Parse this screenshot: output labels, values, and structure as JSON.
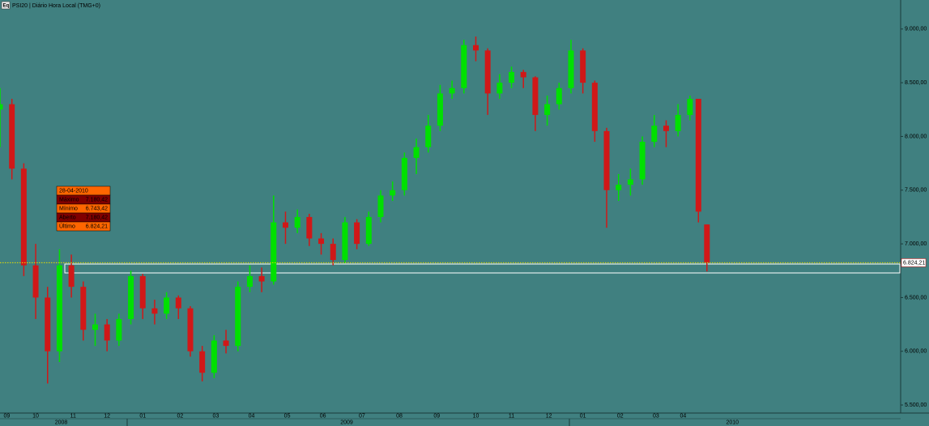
{
  "chart_data": {
    "type": "candlestick",
    "icon_label": "Eq",
    "title": "PSI20 | Diário Hora Local (TMG+0)",
    "x": [
      0,
      7,
      14,
      21,
      28,
      35,
      42,
      49,
      56,
      63,
      70,
      77,
      84,
      91,
      98,
      105,
      112,
      119,
      126,
      133,
      140,
      147,
      154,
      161,
      168,
      175,
      182,
      189,
      196,
      203,
      210,
      217,
      224,
      231,
      238,
      245,
      252,
      259,
      266,
      273,
      280,
      287,
      294,
      301,
      308,
      315,
      322,
      329,
      336,
      343,
      350,
      357,
      364,
      371,
      378,
      385,
      392,
      399,
      406,
      411,
      416
    ],
    "open": [
      8250,
      8300,
      7700,
      6800,
      6500,
      6000,
      6800,
      6600,
      6200,
      6250,
      6100,
      6300,
      6700,
      6400,
      6350,
      6500,
      6400,
      6000,
      5800,
      6100,
      6050,
      6600,
      6700,
      6650,
      7200,
      7150,
      7250,
      7050,
      7000,
      6850,
      7200,
      7000,
      7250,
      7450,
      7500,
      7800,
      7900,
      8100,
      8400,
      8450,
      8850,
      8800,
      8400,
      8500,
      8600,
      8550,
      8200,
      8300,
      8450,
      8800,
      8500,
      8050,
      7500,
      7550,
      7600,
      7950,
      8100,
      8050,
      8200,
      8350,
      7180.42
    ],
    "high": [
      8450,
      8350,
      7750,
      7000,
      6600,
      6950,
      6900,
      6650,
      6350,
      6300,
      6350,
      6750,
      6720,
      6480,
      6550,
      6520,
      6420,
      6050,
      6150,
      6200,
      6650,
      6800,
      6780,
      7450,
      7300,
      7320,
      7280,
      7100,
      7050,
      7250,
      7230,
      7300,
      7500,
      7580,
      7850,
      7980,
      8200,
      8480,
      8520,
      8900,
      8930,
      8820,
      8580,
      8650,
      8620,
      8560,
      8380,
      8500,
      8900,
      8820,
      8520,
      8080,
      7650,
      7700,
      8000,
      8200,
      8150,
      8300,
      8380,
      8350,
      7180.42
    ],
    "low": [
      7900,
      7600,
      6700,
      6300,
      5700,
      5900,
      6500,
      6100,
      6050,
      6000,
      6050,
      6250,
      6300,
      6250,
      6300,
      6300,
      5950,
      5720,
      5750,
      5980,
      6000,
      6550,
      6550,
      6620,
      7000,
      7100,
      6980,
      6900,
      6800,
      6820,
      6950,
      6980,
      7200,
      7400,
      7450,
      7650,
      7850,
      8050,
      8350,
      8400,
      8700,
      8200,
      8350,
      8450,
      8450,
      8050,
      8100,
      8250,
      8400,
      8400,
      7950,
      7150,
      7400,
      7450,
      7550,
      7900,
      7900,
      8000,
      8150,
      7200,
      6743.42
    ],
    "close": [
      8300,
      7700,
      6800,
      6500,
      6000,
      6800,
      6600,
      6200,
      6250,
      6100,
      6300,
      6700,
      6400,
      6350,
      6500,
      6400,
      6000,
      5800,
      6100,
      6050,
      6600,
      6700,
      6650,
      7200,
      7150,
      7250,
      7050,
      7000,
      6850,
      7200,
      7000,
      7250,
      7450,
      7500,
      7800,
      7900,
      8100,
      8400,
      8450,
      8850,
      8800,
      8400,
      8500,
      8600,
      8550,
      8200,
      8300,
      8450,
      8800,
      8500,
      8050,
      7500,
      7550,
      7600,
      7950,
      8100,
      8050,
      8200,
      8350,
      7300,
      6824.21
    ],
    "up_color": "#00e000",
    "down_color": "#d01818",
    "xlim": [
      0,
      530
    ],
    "ylim": [
      5425,
      9270
    ],
    "yticks": [
      {
        "value": 5500,
        "label": "5.500,00"
      },
      {
        "value": 6000,
        "label": "6.000,00"
      },
      {
        "value": 6500,
        "label": "6.500,00"
      },
      {
        "value": 7000,
        "label": "7.000,00"
      },
      {
        "value": 7500,
        "label": "7.500,00"
      },
      {
        "value": 8000,
        "label": "8.000,00"
      },
      {
        "value": 8500,
        "label": "8.500,00"
      },
      {
        "value": 9000,
        "label": "9.000,00"
      }
    ],
    "xticks": [
      {
        "value": 4,
        "label": "09"
      },
      {
        "value": 21,
        "label": "10"
      },
      {
        "value": 43,
        "label": "11"
      },
      {
        "value": 63,
        "label": "12"
      },
      {
        "value": 84,
        "label": "01"
      },
      {
        "value": 106,
        "label": "02"
      },
      {
        "value": 127,
        "label": "03"
      },
      {
        "value": 148,
        "label": "04"
      },
      {
        "value": 169,
        "label": "05"
      },
      {
        "value": 190,
        "label": "06"
      },
      {
        "value": 213,
        "label": "07"
      },
      {
        "value": 235,
        "label": "08"
      },
      {
        "value": 257,
        "label": "09"
      },
      {
        "value": 280,
        "label": "10"
      },
      {
        "value": 301,
        "label": "11"
      },
      {
        "value": 323,
        "label": "12"
      },
      {
        "value": 343,
        "label": "01"
      },
      {
        "value": 365,
        "label": "02"
      },
      {
        "value": 386,
        "label": "03"
      },
      {
        "value": 402,
        "label": "04"
      }
    ],
    "year_ticks": [
      {
        "value": 36,
        "label": "2008"
      },
      {
        "value": 204,
        "label": "2009"
      },
      {
        "value": 431,
        "label": "2010"
      }
    ],
    "last_price": {
      "value": 6824.21,
      "label": "6.824,21"
    },
    "tooltip": {
      "date": "28-04-2010",
      "rows": [
        [
          "Máximo",
          "7.180,42"
        ],
        [
          "Mínimo",
          "6.743,42"
        ],
        [
          "Aberto",
          "7.180,42"
        ],
        [
          "Último",
          "6.824,21"
        ]
      ]
    }
  }
}
